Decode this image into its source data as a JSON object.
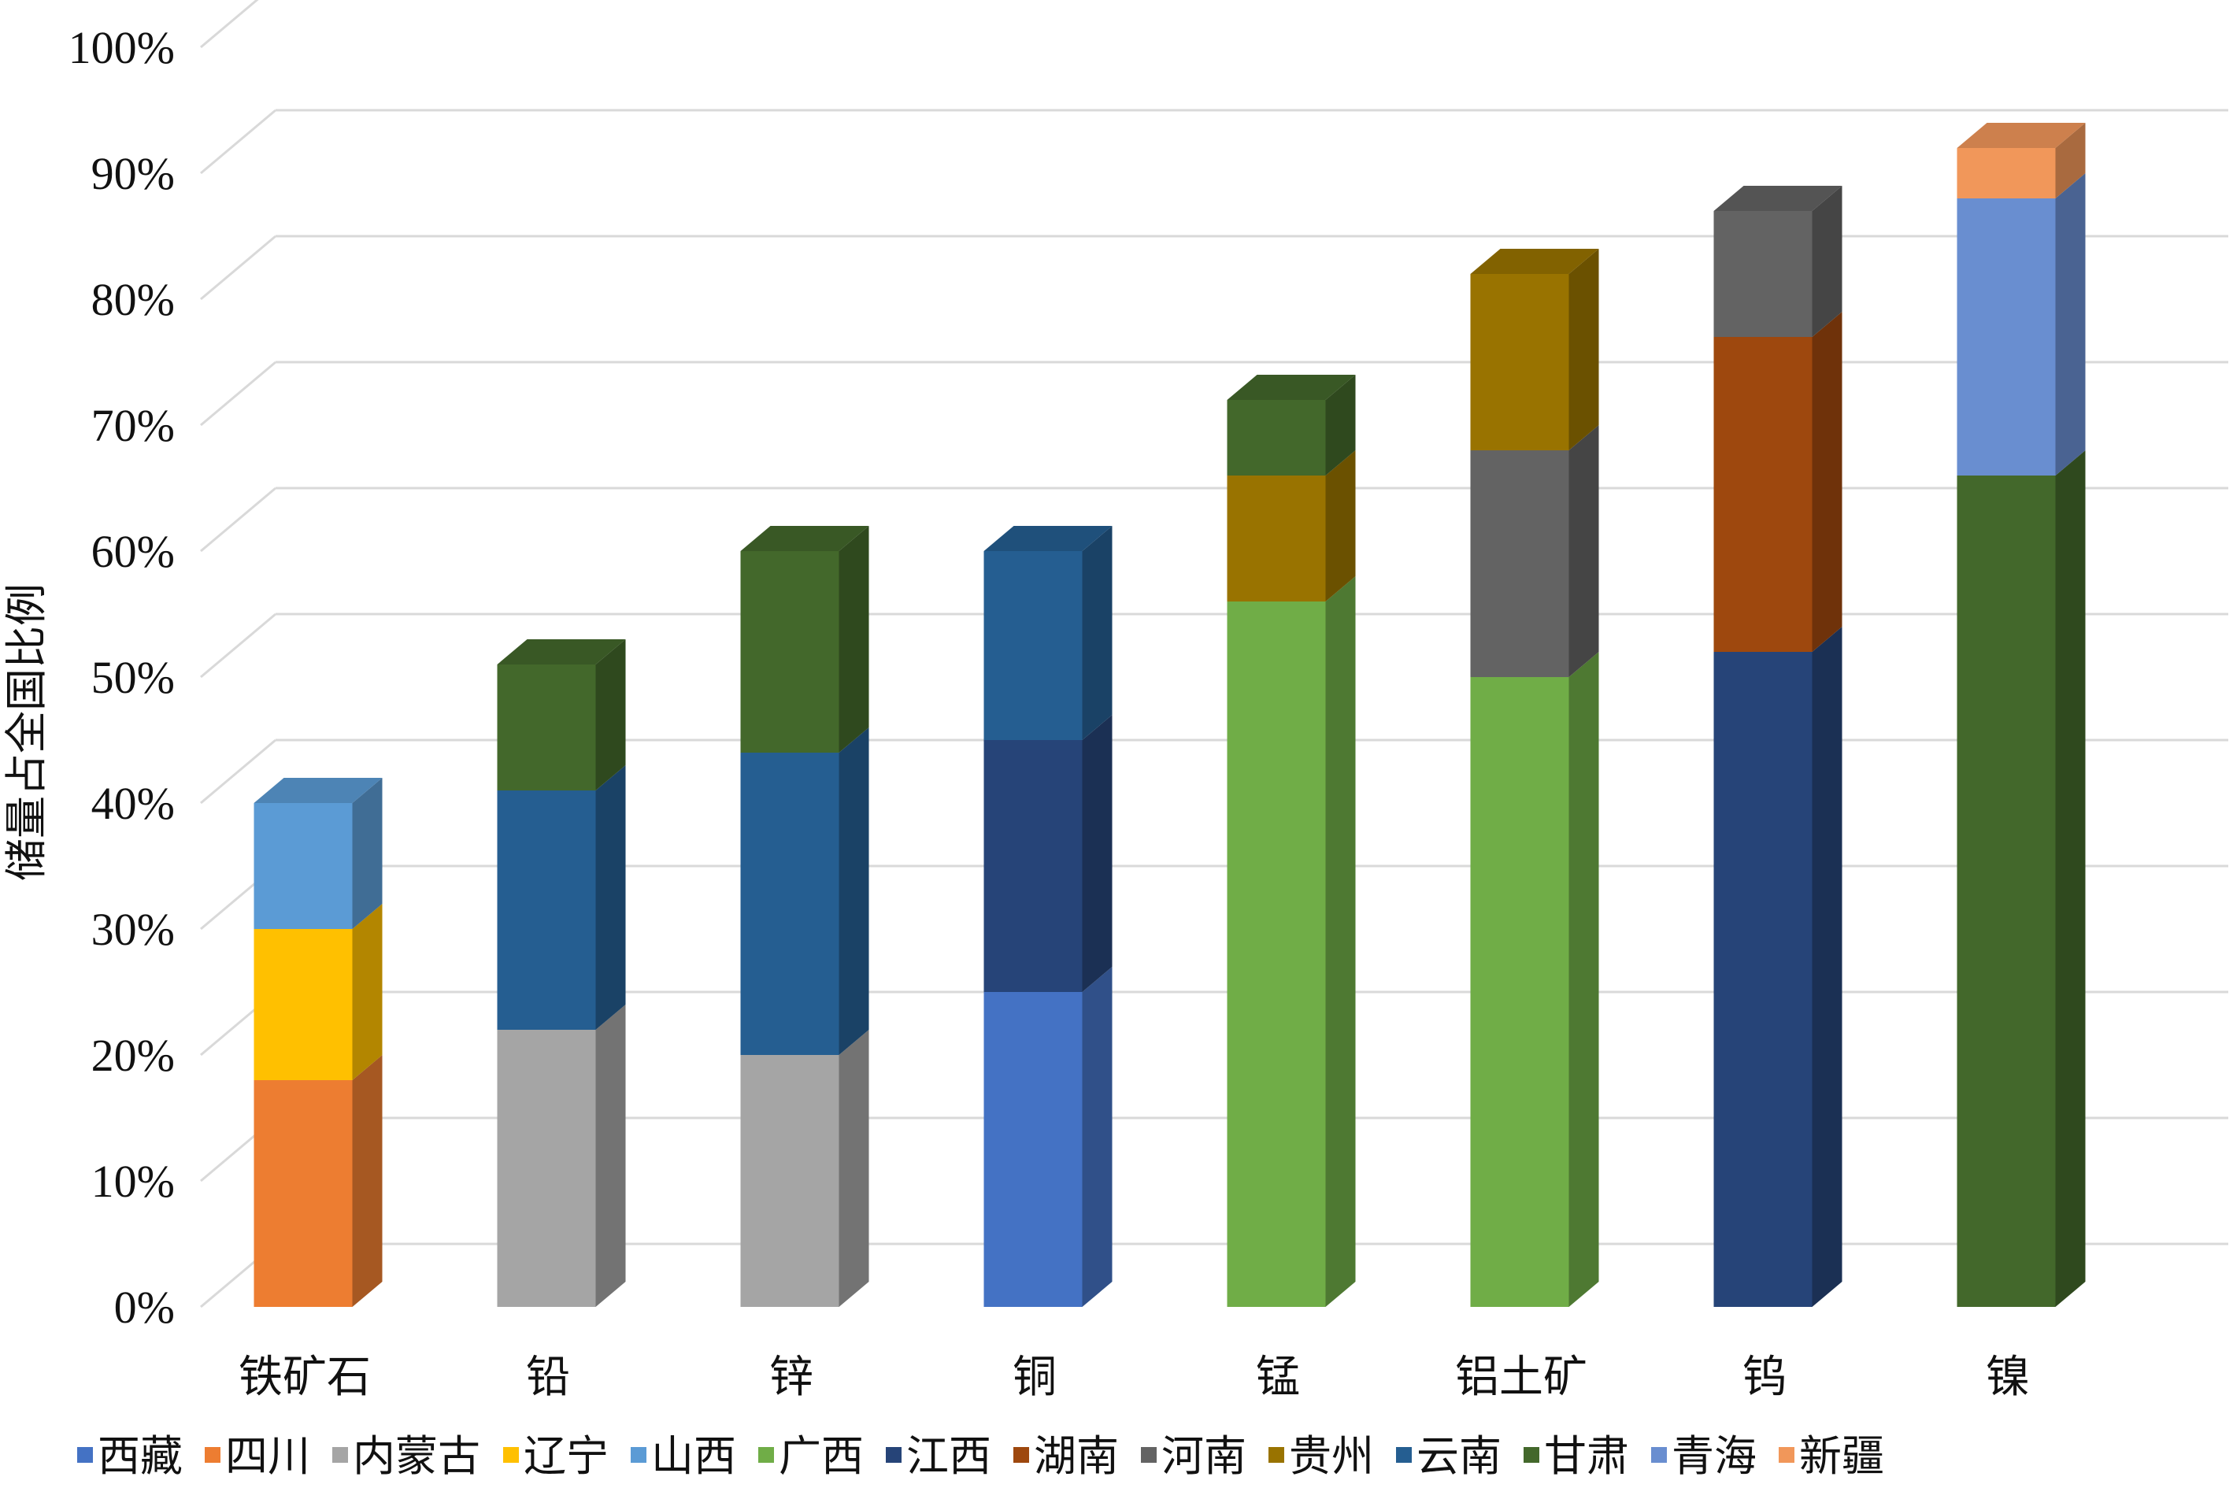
{
  "chart_data": {
    "type": "bar",
    "stacked": true,
    "three_d": true,
    "title": "",
    "xlabel": "",
    "ylabel": "储量占全国比例",
    "ylim": [
      0,
      100
    ],
    "y_ticks": [
      "0%",
      "10%",
      "20%",
      "30%",
      "40%",
      "50%",
      "60%",
      "70%",
      "80%",
      "90%",
      "100%"
    ],
    "grid": true,
    "legend_position": "bottom",
    "categories": [
      "铁矿石",
      "铅",
      "锌",
      "铜",
      "锰",
      "铝土矿",
      "钨",
      "镍"
    ],
    "legend": [
      {
        "name": "西藏",
        "color": "#4472C4"
      },
      {
        "name": "四川",
        "color": "#ED7D31"
      },
      {
        "name": "内蒙古",
        "color": "#A5A5A5"
      },
      {
        "name": "辽宁",
        "color": "#FFC000"
      },
      {
        "name": "山西",
        "color": "#5B9BD5"
      },
      {
        "name": "广西",
        "color": "#70AD47"
      },
      {
        "name": "江西",
        "color": "#264478"
      },
      {
        "name": "湖南",
        "color": "#9E480E"
      },
      {
        "name": "河南",
        "color": "#636363"
      },
      {
        "name": "贵州",
        "color": "#997300"
      },
      {
        "name": "云南",
        "color": "#255E91"
      },
      {
        "name": "甘肃",
        "color": "#43682B"
      },
      {
        "name": "青海",
        "color": "#698ED0"
      },
      {
        "name": "新疆",
        "color": "#F1975A"
      }
    ],
    "stacks": [
      [
        {
          "series": "四川",
          "value": 18
        },
        {
          "series": "辽宁",
          "value": 12
        },
        {
          "series": "山西",
          "value": 10
        }
      ],
      [
        {
          "series": "内蒙古",
          "value": 22
        },
        {
          "series": "云南",
          "value": 19
        },
        {
          "series": "甘肃",
          "value": 10
        }
      ],
      [
        {
          "series": "内蒙古",
          "value": 20
        },
        {
          "series": "云南",
          "value": 24
        },
        {
          "series": "甘肃",
          "value": 16
        }
      ],
      [
        {
          "series": "西藏",
          "value": 25
        },
        {
          "series": "江西",
          "value": 20
        },
        {
          "series": "云南",
          "value": 15
        }
      ],
      [
        {
          "series": "广西",
          "value": 56
        },
        {
          "series": "贵州",
          "value": 10
        },
        {
          "series": "甘肃",
          "value": 6
        }
      ],
      [
        {
          "series": "广西",
          "value": 50
        },
        {
          "series": "河南",
          "value": 18
        },
        {
          "series": "贵州",
          "value": 14
        }
      ],
      [
        {
          "series": "江西",
          "value": 52
        },
        {
          "series": "湖南",
          "value": 25
        },
        {
          "series": "河南",
          "value": 10
        }
      ],
      [
        {
          "series": "甘肃",
          "value": 66
        },
        {
          "series": "青海",
          "value": 22
        },
        {
          "series": "新疆",
          "value": 4
        }
      ]
    ]
  }
}
